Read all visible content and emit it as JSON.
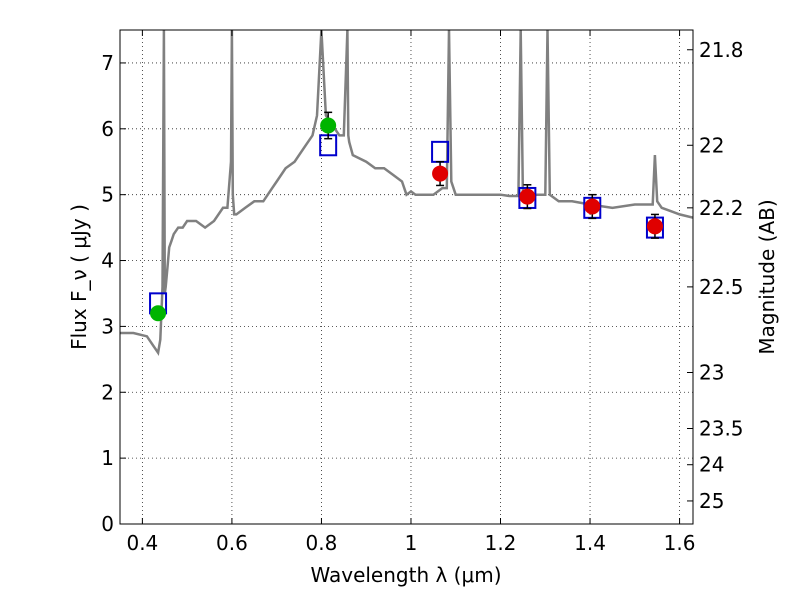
{
  "chart_data": {
    "type": "line",
    "xlabel": "Wavelength  λ (μm)",
    "ylabel_left": "Flux  F_ν  ( μJy )",
    "ylabel_right": "Magnitude (AB)",
    "xlim": [
      0.35,
      1.63
    ],
    "ylim": [
      0,
      7.5
    ],
    "grid": true,
    "x_ticks": [
      0.4,
      0.6,
      0.8,
      1.0,
      1.2,
      1.4,
      1.6
    ],
    "x_tick_labels": [
      "0.4",
      "0.6",
      "0.8",
      "1",
      "1.2",
      "1.4",
      "1.6"
    ],
    "y_ticks": [
      0,
      1,
      2,
      3,
      4,
      5,
      6,
      7
    ],
    "y_tick_labels": [
      "0",
      "1",
      "2",
      "3",
      "4",
      "5",
      "6",
      "7"
    ],
    "right_ticks": [
      {
        "flux": 7.2,
        "label": "21.8"
      },
      {
        "flux": 5.75,
        "label": "22"
      },
      {
        "flux": 4.8,
        "label": "22.2"
      },
      {
        "flux": 3.6,
        "label": "22.5"
      },
      {
        "flux": 2.3,
        "label": "23"
      },
      {
        "flux": 1.45,
        "label": "23.5"
      },
      {
        "flux": 0.9,
        "label": "24"
      },
      {
        "flux": 0.35,
        "label": "25"
      }
    ],
    "spectrum": {
      "name": "model spectrum",
      "color": "#808080",
      "x": [
        0.35,
        0.38,
        0.41,
        0.425,
        0.435,
        0.44,
        0.445,
        0.448,
        0.45,
        0.452,
        0.456,
        0.46,
        0.465,
        0.47,
        0.48,
        0.49,
        0.5,
        0.52,
        0.54,
        0.56,
        0.58,
        0.59,
        0.598,
        0.6,
        0.602,
        0.605,
        0.61,
        0.63,
        0.65,
        0.67,
        0.69,
        0.7,
        0.72,
        0.74,
        0.76,
        0.78,
        0.79,
        0.8,
        0.81,
        0.82,
        0.83,
        0.84,
        0.85,
        0.858,
        0.86,
        0.862,
        0.87,
        0.9,
        0.92,
        0.94,
        0.96,
        0.98,
        0.99,
        1.0,
        1.01,
        1.03,
        1.05,
        1.07,
        1.08,
        1.085,
        1.09,
        1.1,
        1.12,
        1.15,
        1.18,
        1.2,
        1.22,
        1.24,
        1.245,
        1.25,
        1.26,
        1.28,
        1.3,
        1.305,
        1.31,
        1.33,
        1.36,
        1.4,
        1.45,
        1.5,
        1.53,
        1.54,
        1.545,
        1.55,
        1.56,
        1.58,
        1.6,
        1.63
      ],
      "y": [
        2.9,
        2.9,
        2.85,
        2.7,
        2.6,
        2.8,
        3.6,
        7.5,
        3.5,
        3.6,
        3.9,
        4.2,
        4.3,
        4.4,
        4.5,
        4.5,
        4.6,
        4.6,
        4.5,
        4.6,
        4.8,
        4.8,
        5.5,
        7.5,
        5.0,
        4.7,
        4.7,
        4.8,
        4.9,
        4.9,
        5.1,
        5.2,
        5.4,
        5.5,
        5.7,
        5.9,
        6.2,
        7.5,
        6.2,
        6.1,
        6.0,
        5.9,
        5.9,
        7.5,
        5.9,
        5.8,
        5.6,
        5.5,
        5.4,
        5.4,
        5.3,
        5.2,
        5.0,
        5.05,
        5.0,
        5.0,
        5.0,
        5.1,
        5.1,
        7.5,
        5.2,
        5.0,
        5.0,
        5.0,
        5.0,
        5.0,
        4.98,
        4.98,
        7.5,
        5.0,
        4.9,
        5.0,
        5.0,
        7.5,
        5.0,
        4.9,
        4.9,
        4.85,
        4.8,
        4.85,
        4.85,
        4.85,
        5.6,
        4.9,
        4.8,
        4.75,
        4.7,
        4.65
      ]
    },
    "model_photometry": {
      "name": "model (open blue squares)",
      "color": "#0000cc",
      "x": [
        0.435,
        0.815,
        1.065,
        1.26,
        1.405,
        1.545
      ],
      "y": [
        3.35,
        5.75,
        5.65,
        4.95,
        4.8,
        4.5
      ]
    },
    "observed_green": {
      "name": "observed (green)",
      "color": "#00b400",
      "x": [
        0.435,
        0.815
      ],
      "y": [
        3.2,
        6.05
      ],
      "err": [
        0.08,
        0.2
      ]
    },
    "observed_red": {
      "name": "observed (red)",
      "color": "#e00000",
      "x": [
        1.065,
        1.26,
        1.405,
        1.545
      ],
      "y": [
        5.32,
        4.97,
        4.82,
        4.52
      ],
      "err": [
        0.18,
        0.18,
        0.18,
        0.18
      ]
    }
  }
}
